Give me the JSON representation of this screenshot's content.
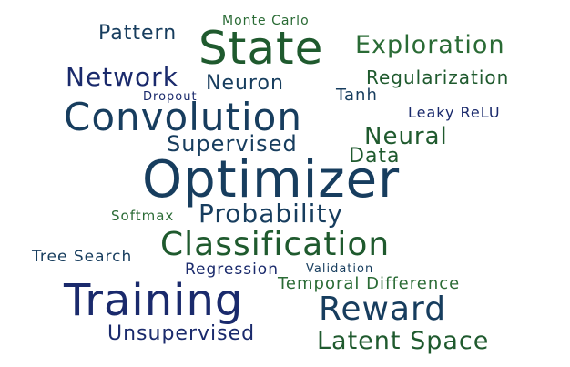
{
  "colors": {
    "navy": "#1a2a6c",
    "teal_navy": "#173d5e",
    "dark_green": "#1f5a2e",
    "green": "#2a6b35"
  },
  "words": [
    {
      "text": "Monte Carlo",
      "color": "#2a6b35"
    },
    {
      "text": "Pattern",
      "color": "#173d5e"
    },
    {
      "text": "State",
      "color": "#1f5a2e"
    },
    {
      "text": "Exploration",
      "color": "#2a6b35"
    },
    {
      "text": "Network",
      "color": "#1a2a6c"
    },
    {
      "text": "Neuron",
      "color": "#173d5e"
    },
    {
      "text": "Regularization",
      "color": "#1f5a2e"
    },
    {
      "text": "Dropout",
      "color": "#1a2a6c"
    },
    {
      "text": "Tanh",
      "color": "#173d5e"
    },
    {
      "text": "Convolution",
      "color": "#173d5e"
    },
    {
      "text": "Leaky ReLU",
      "color": "#1a2a6c"
    },
    {
      "text": "Neural",
      "color": "#1f5a2e"
    },
    {
      "text": "Supervised",
      "color": "#173d5e"
    },
    {
      "text": "Data",
      "color": "#1f5a2e"
    },
    {
      "text": "Optimizer",
      "color": "#173d5e"
    },
    {
      "text": "Softmax",
      "color": "#2a6b35"
    },
    {
      "text": "Probability",
      "color": "#173d5e"
    },
    {
      "text": "Classification",
      "color": "#1f5a2e"
    },
    {
      "text": "Tree Search",
      "color": "#173d5e"
    },
    {
      "text": "Regression",
      "color": "#1a2a6c"
    },
    {
      "text": "Validation",
      "color": "#173d5e"
    },
    {
      "text": "Temporal Difference",
      "color": "#2a6b35"
    },
    {
      "text": "Training",
      "color": "#1a2a6c"
    },
    {
      "text": "Reward",
      "color": "#173d5e"
    },
    {
      "text": "Unsupervised",
      "color": "#1a2a6c"
    },
    {
      "text": "Latent Space",
      "color": "#1f5a2e"
    }
  ]
}
